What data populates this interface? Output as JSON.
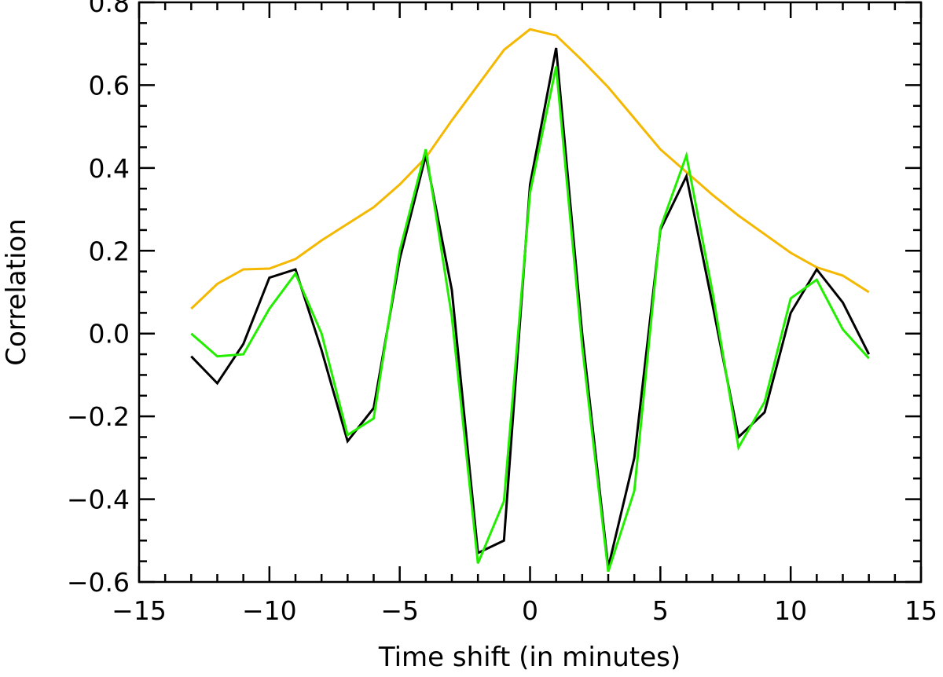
{
  "chart_data": {
    "type": "line",
    "title": "",
    "xlabel": "Time shift (in minutes)",
    "ylabel": "Correlation",
    "xlim": [
      -15,
      15
    ],
    "ylim": [
      -0.6,
      0.8
    ],
    "grid": false,
    "legend": "none",
    "x_ticks": [
      -15,
      -10,
      -5,
      0,
      5,
      10,
      15
    ],
    "x_tick_labels": [
      "−15",
      "−10",
      "−5",
      "0",
      "5",
      "10",
      "15"
    ],
    "y_ticks": [
      -0.6,
      -0.4,
      -0.2,
      0.0,
      0.2,
      0.4,
      0.6,
      0.8
    ],
    "y_tick_labels": [
      "−0.6",
      "−0.4",
      "−0.2",
      "0.0",
      "0.2",
      "0.4",
      "0.6",
      "0.8"
    ],
    "x": [
      -13,
      -12,
      -11,
      -10,
      -9,
      -8,
      -7,
      -6,
      -5,
      -4,
      -3,
      -2,
      -1,
      0,
      1,
      2,
      3,
      4,
      5,
      6,
      7,
      8,
      9,
      10,
      11,
      12,
      13
    ],
    "series": [
      {
        "color": "#f5b800",
        "values": [
          0.06,
          0.12,
          0.155,
          0.157,
          0.18,
          0.225,
          0.265,
          0.305,
          0.36,
          0.425,
          0.515,
          0.6,
          0.685,
          0.735,
          0.72,
          0.66,
          0.595,
          0.52,
          0.445,
          0.39,
          0.335,
          0.285,
          0.24,
          0.195,
          0.16,
          0.14,
          0.1
        ]
      },
      {
        "color": "#000000",
        "values": [
          -0.055,
          -0.12,
          -0.025,
          0.135,
          0.155,
          -0.04,
          -0.26,
          -0.18,
          0.18,
          0.43,
          0.105,
          -0.53,
          -0.5,
          0.36,
          0.69,
          0.0,
          -0.565,
          -0.3,
          0.25,
          0.38,
          0.07,
          -0.25,
          -0.19,
          0.05,
          0.155,
          0.075,
          -0.05
        ]
      },
      {
        "color": "#22ee00",
        "values": [
          0.0,
          -0.055,
          -0.05,
          0.06,
          0.145,
          0.0,
          -0.245,
          -0.205,
          0.2,
          0.445,
          0.04,
          -0.555,
          -0.405,
          0.34,
          0.645,
          -0.03,
          -0.575,
          -0.38,
          0.255,
          0.43,
          0.1,
          -0.275,
          -0.165,
          0.085,
          0.13,
          0.01,
          -0.06
        ]
      }
    ]
  }
}
